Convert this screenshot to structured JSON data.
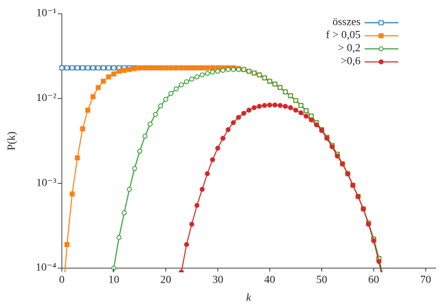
{
  "chart_data": {
    "type": "line",
    "xlabel": "k",
    "ylabel": "P(k)",
    "log_y": true,
    "legend": "upper right",
    "xlim": [
      0,
      72
    ],
    "ylim": [
      0.0001,
      0.1
    ],
    "xticks": [
      0,
      10,
      20,
      30,
      40,
      50,
      60,
      70
    ],
    "yticks": [
      {
        "value": 0.0001,
        "label": "10⁻⁴"
      },
      {
        "value": 0.001,
        "label": "10⁻³"
      },
      {
        "value": 0.01,
        "label": "10⁻²"
      },
      {
        "value": 0.1,
        "label": "10⁻¹"
      }
    ],
    "series": [
      {
        "name": "összes",
        "color": "#1f77b4",
        "marker": "square",
        "filled": false,
        "x": [
          0,
          1,
          2,
          3,
          4,
          5,
          6,
          7,
          8,
          9,
          10,
          11,
          12,
          13,
          14,
          15,
          16,
          17,
          18,
          19,
          20,
          21,
          22,
          23,
          24,
          25,
          26,
          27,
          28,
          29,
          30,
          31,
          32,
          33,
          34,
          35,
          36,
          37,
          38,
          39,
          40,
          41,
          42,
          43,
          44,
          45,
          46,
          47,
          48,
          49,
          50,
          51,
          52,
          53,
          54,
          55,
          56,
          57,
          58,
          59,
          60,
          61,
          62
        ],
        "values": [
          0.023,
          0.023,
          0.023,
          0.023,
          0.023,
          0.023,
          0.023,
          0.023,
          0.023,
          0.023,
          0.023,
          0.023,
          0.023,
          0.023,
          0.023,
          0.023,
          0.023,
          0.023,
          0.023,
          0.023,
          0.023,
          0.023,
          0.023,
          0.023,
          0.023,
          0.023,
          0.023,
          0.023,
          0.023,
          0.023,
          0.023,
          0.023,
          0.023,
          0.023,
          0.0225,
          0.022,
          0.021,
          0.02,
          0.019,
          0.0175,
          0.016,
          0.0148,
          0.0135,
          0.012,
          0.0108,
          0.0095,
          0.0083,
          0.0072,
          0.0062,
          0.0052,
          0.0043,
          0.0035,
          0.0028,
          0.0022,
          0.0017,
          0.0013,
          0.00095,
          0.0007,
          0.0005,
          0.00034,
          0.00022,
          0.00013,
          7e-05
        ]
      },
      {
        "name": "f > 0,05",
        "color": "#ff7f0e",
        "marker": "square",
        "filled": true,
        "x": [
          0,
          1,
          2,
          3,
          4,
          5,
          6,
          7,
          8,
          9,
          10,
          11,
          12,
          13,
          14,
          15,
          16,
          17,
          18,
          19,
          20,
          21,
          22,
          23,
          24,
          25,
          26,
          27,
          28,
          29,
          30,
          31,
          32,
          33,
          34,
          35,
          36,
          37,
          38,
          39,
          40,
          41,
          42,
          43,
          44,
          45,
          46,
          47,
          48,
          49,
          50,
          51,
          52,
          53,
          54,
          55,
          56,
          57,
          58,
          59,
          60,
          61,
          62
        ],
        "values": [
          3e-05,
          0.00019,
          0.00075,
          0.002,
          0.0044,
          0.0073,
          0.0105,
          0.0135,
          0.016,
          0.018,
          0.0195,
          0.021,
          0.0215,
          0.022,
          0.0225,
          0.023,
          0.023,
          0.023,
          0.023,
          0.023,
          0.023,
          0.023,
          0.023,
          0.023,
          0.023,
          0.023,
          0.023,
          0.023,
          0.023,
          0.023,
          0.023,
          0.023,
          0.023,
          0.023,
          0.0225,
          0.022,
          0.021,
          0.02,
          0.019,
          0.0175,
          0.016,
          0.0148,
          0.0135,
          0.012,
          0.0108,
          0.0095,
          0.0083,
          0.0072,
          0.0062,
          0.0052,
          0.0043,
          0.0035,
          0.0028,
          0.0022,
          0.0017,
          0.0013,
          0.00095,
          0.0007,
          0.0005,
          0.00034,
          0.00022,
          0.00013,
          7e-05
        ]
      },
      {
        "name": "> 0,2",
        "color": "#2ca02c",
        "marker": "circle",
        "filled": false,
        "x": [
          9,
          10,
          11,
          12,
          13,
          14,
          15,
          16,
          17,
          18,
          19,
          20,
          21,
          22,
          23,
          24,
          25,
          26,
          27,
          28,
          29,
          30,
          31,
          32,
          33,
          34,
          35,
          36,
          37,
          38,
          39,
          40,
          41,
          42,
          43,
          44,
          45,
          46,
          47,
          48,
          49,
          50,
          51,
          52,
          53,
          54,
          55,
          56,
          57,
          58,
          59,
          60,
          61,
          62
        ],
        "values": [
          4e-05,
          0.0001,
          0.00023,
          0.00045,
          0.00085,
          0.0015,
          0.0024,
          0.0036,
          0.005,
          0.0065,
          0.0082,
          0.0098,
          0.0115,
          0.013,
          0.0145,
          0.0158,
          0.017,
          0.018,
          0.019,
          0.0198,
          0.0205,
          0.021,
          0.0215,
          0.022,
          0.022,
          0.022,
          0.022,
          0.021,
          0.02,
          0.019,
          0.0175,
          0.016,
          0.0148,
          0.0135,
          0.012,
          0.0108,
          0.0095,
          0.0083,
          0.0072,
          0.0062,
          0.0052,
          0.0043,
          0.0035,
          0.0028,
          0.0022,
          0.0017,
          0.0013,
          0.00095,
          0.0007,
          0.0005,
          0.00034,
          0.00022,
          0.00013,
          7e-05
        ]
      },
      {
        "name": ">0,6",
        "color": "#d62728",
        "marker": "circle",
        "filled": true,
        "x": [
          23,
          24,
          25,
          26,
          27,
          28,
          29,
          30,
          31,
          32,
          33,
          34,
          35,
          36,
          37,
          38,
          39,
          40,
          41,
          42,
          43,
          44,
          45,
          46,
          47,
          48,
          49,
          50,
          51,
          52,
          53,
          54,
          55,
          56,
          57,
          58,
          59,
          60,
          61,
          62
        ],
        "values": [
          9e-05,
          0.00019,
          0.00033,
          0.00055,
          0.00085,
          0.0013,
          0.0019,
          0.0026,
          0.0034,
          0.0043,
          0.0052,
          0.006,
          0.0067,
          0.0073,
          0.0078,
          0.0081,
          0.0083,
          0.0084,
          0.0084,
          0.0083,
          0.0081,
          0.0078,
          0.0073,
          0.0068,
          0.0062,
          0.0056,
          0.0049,
          0.0042,
          0.0034,
          0.0027,
          0.0021,
          0.0017,
          0.0013,
          0.00095,
          0.0007,
          0.0005,
          0.00033,
          0.00021,
          0.00012,
          6e-05
        ]
      }
    ]
  }
}
